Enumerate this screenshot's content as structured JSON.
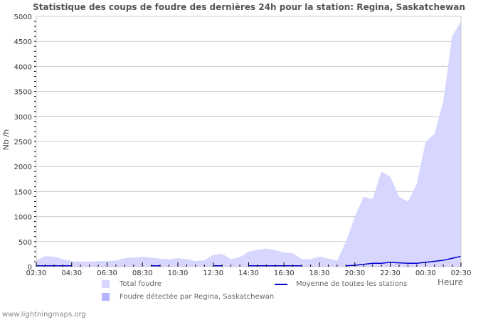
{
  "title": "Statistique des coups de foudre des dernières 24h pour la station: Regina, Saskatchewan",
  "footer": "www.lightningmaps.org",
  "colors": {
    "total_fill": "#d6d6ff",
    "station_fill": "#b4b4ff",
    "average_line": "#0000cc",
    "grid": "#cccccc",
    "text": "#555555"
  },
  "legend": {
    "total": "Total foudre",
    "station": "Foudre détectée par Regina, Saskatchewan",
    "average": "Moyenne de toutes les stations"
  },
  "chart_data": {
    "type": "area",
    "title": "Statistique des coups de foudre des dernières 24h pour la station: Regina, Saskatchewan",
    "xlabel": "Heure",
    "ylabel": "Nb /h",
    "ylim": [
      0,
      5000
    ],
    "yticks": [
      0,
      500,
      1000,
      1500,
      2000,
      2500,
      3000,
      3500,
      4000,
      4500,
      5000
    ],
    "xticks": [
      "02:30",
      "04:30",
      "06:30",
      "08:30",
      "10:30",
      "12:30",
      "14:30",
      "16:30",
      "18:30",
      "20:30",
      "22:30",
      "00:30",
      "02:30"
    ],
    "grid": true,
    "legend_position": "bottom",
    "x": [
      "02:30",
      "03:00",
      "03:30",
      "04:00",
      "04:30",
      "05:00",
      "05:30",
      "06:00",
      "06:30",
      "07:00",
      "07:30",
      "08:00",
      "08:30",
      "09:00",
      "09:30",
      "10:00",
      "10:30",
      "11:00",
      "11:30",
      "12:00",
      "12:30",
      "13:00",
      "13:30",
      "14:00",
      "14:30",
      "15:00",
      "15:30",
      "16:00",
      "16:30",
      "17:00",
      "17:30",
      "18:00",
      "18:30",
      "19:00",
      "19:30",
      "20:00",
      "20:30",
      "21:00",
      "21:30",
      "22:00",
      "22:30",
      "23:00",
      "23:30",
      "00:00",
      "00:30",
      "01:00",
      "01:30",
      "02:00",
      "02:30"
    ],
    "series": [
      {
        "name": "Total foudre",
        "values": [
          130,
          210,
          200,
          150,
          110,
          100,
          100,
          110,
          110,
          120,
          170,
          180,
          200,
          180,
          160,
          150,
          170,
          150,
          110,
          130,
          230,
          260,
          150,
          190,
          300,
          340,
          360,
          330,
          280,
          270,
          150,
          150,
          200,
          160,
          120,
          500,
          1000,
          1400,
          1350,
          1900,
          1800,
          1400,
          1300,
          1650,
          2500,
          2650,
          3300,
          4600,
          4900
        ]
      },
      {
        "name": "Foudre détectée par Regina, Saskatchewan",
        "values": [
          0,
          0,
          0,
          0,
          0,
          0,
          0,
          0,
          0,
          0,
          0,
          0,
          0,
          0,
          0,
          0,
          0,
          0,
          0,
          0,
          0,
          0,
          0,
          0,
          0,
          0,
          0,
          0,
          0,
          0,
          0,
          0,
          0,
          0,
          0,
          0,
          0,
          0,
          0,
          0,
          0,
          0,
          0,
          0,
          0,
          0,
          0,
          0,
          0
        ]
      },
      {
        "name": "Moyenne de toutes les stations",
        "values": [
          10,
          10,
          10,
          10,
          10,
          null,
          null,
          null,
          null,
          null,
          null,
          10,
          null,
          10,
          10,
          null,
          10,
          null,
          null,
          null,
          10,
          10,
          null,
          null,
          10,
          10,
          10,
          10,
          10,
          10,
          10,
          null,
          10,
          null,
          null,
          10,
          20,
          40,
          60,
          60,
          80,
          70,
          60,
          60,
          80,
          100,
          120,
          160,
          200
        ]
      }
    ]
  }
}
